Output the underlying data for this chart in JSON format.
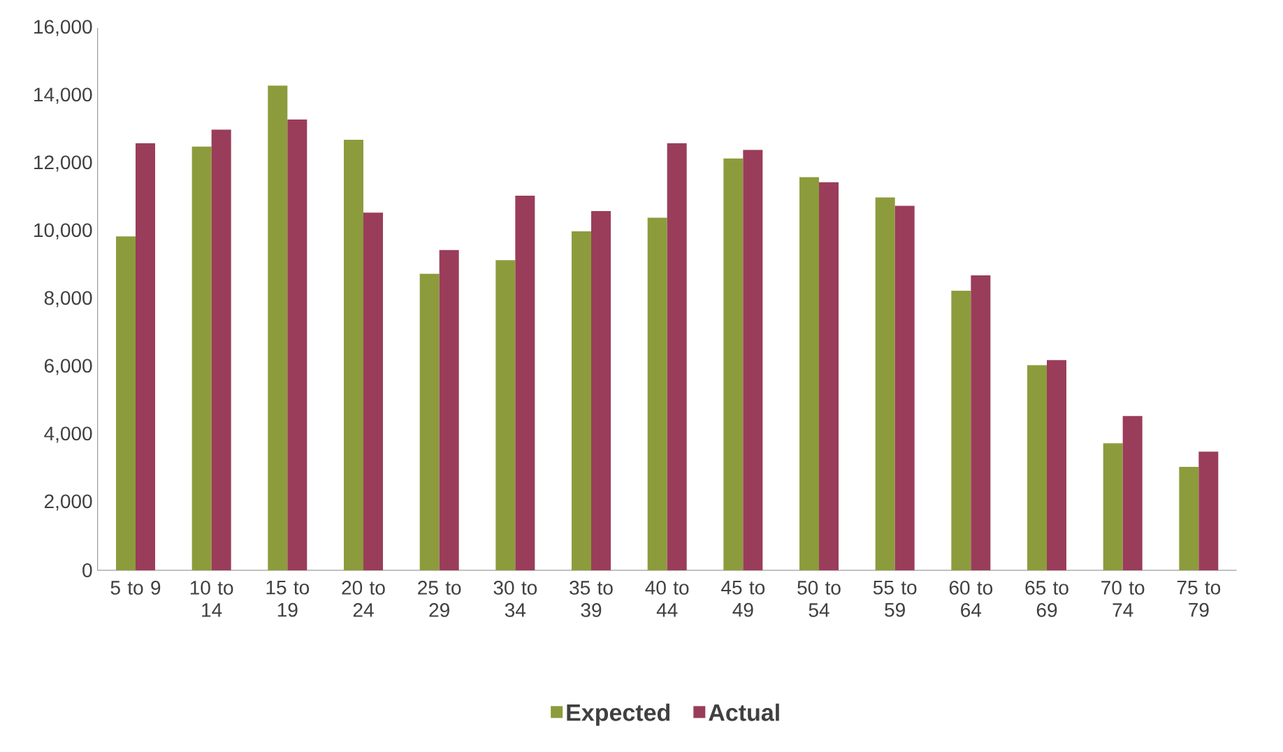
{
  "chart_data": {
    "type": "bar",
    "categories": [
      "5 to 9",
      "10 to 14",
      "15 to 19",
      "20 to 24",
      "25 to 29",
      "30 to 34",
      "35 to 39",
      "40 to 44",
      "45 to 49",
      "50 to 54",
      "55 to 59",
      "60 to 64",
      "65 to 69",
      "70 to 74",
      "75 to 79"
    ],
    "series": [
      {
        "name": "Expected",
        "color": "#8c9c3c",
        "values": [
          9850,
          12500,
          14300,
          12700,
          8750,
          9150,
          10000,
          10400,
          12150,
          11600,
          11000,
          8250,
          6050,
          3750,
          3050
        ]
      },
      {
        "name": "Actual",
        "color": "#9a3d5a",
        "values": [
          12600,
          13000,
          13300,
          10550,
          9450,
          11050,
          10600,
          12600,
          12400,
          11450,
          10750,
          8700,
          6200,
          4550,
          3500
        ]
      }
    ],
    "ylim": [
      0,
      16000
    ],
    "yticks": [
      {
        "value": 0,
        "label": "0"
      },
      {
        "value": 2000,
        "label": "2,000"
      },
      {
        "value": 4000,
        "label": "4,000"
      },
      {
        "value": 6000,
        "label": "6,000"
      },
      {
        "value": 8000,
        "label": "8,000"
      },
      {
        "value": 10000,
        "label": "10,000"
      },
      {
        "value": 12000,
        "label": "12,000"
      },
      {
        "value": 14000,
        "label": "14,000"
      },
      {
        "value": 16000,
        "label": "16,000"
      }
    ],
    "grid": false,
    "legend": "bottom"
  }
}
